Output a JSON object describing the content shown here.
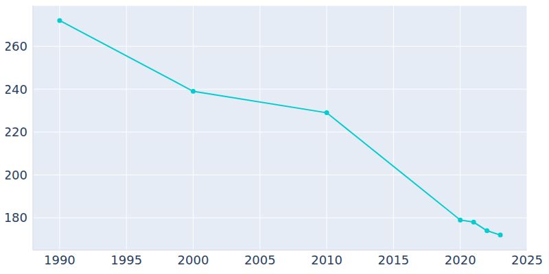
{
  "chart_data": {
    "type": "line",
    "x": [
      1990,
      2000,
      2010,
      2020,
      2021,
      2022,
      2023
    ],
    "values": [
      272,
      239,
      229,
      179,
      178,
      174,
      172
    ],
    "color": "#00cdd0",
    "marker": "circle",
    "xlim": [
      1988,
      2025
    ],
    "xticks": [
      1990,
      1995,
      2000,
      2005,
      2010,
      2015,
      2020,
      2025
    ],
    "ylim": [
      165,
      279
    ],
    "yticks": [
      180,
      200,
      220,
      240,
      260
    ],
    "grid": true
  }
}
